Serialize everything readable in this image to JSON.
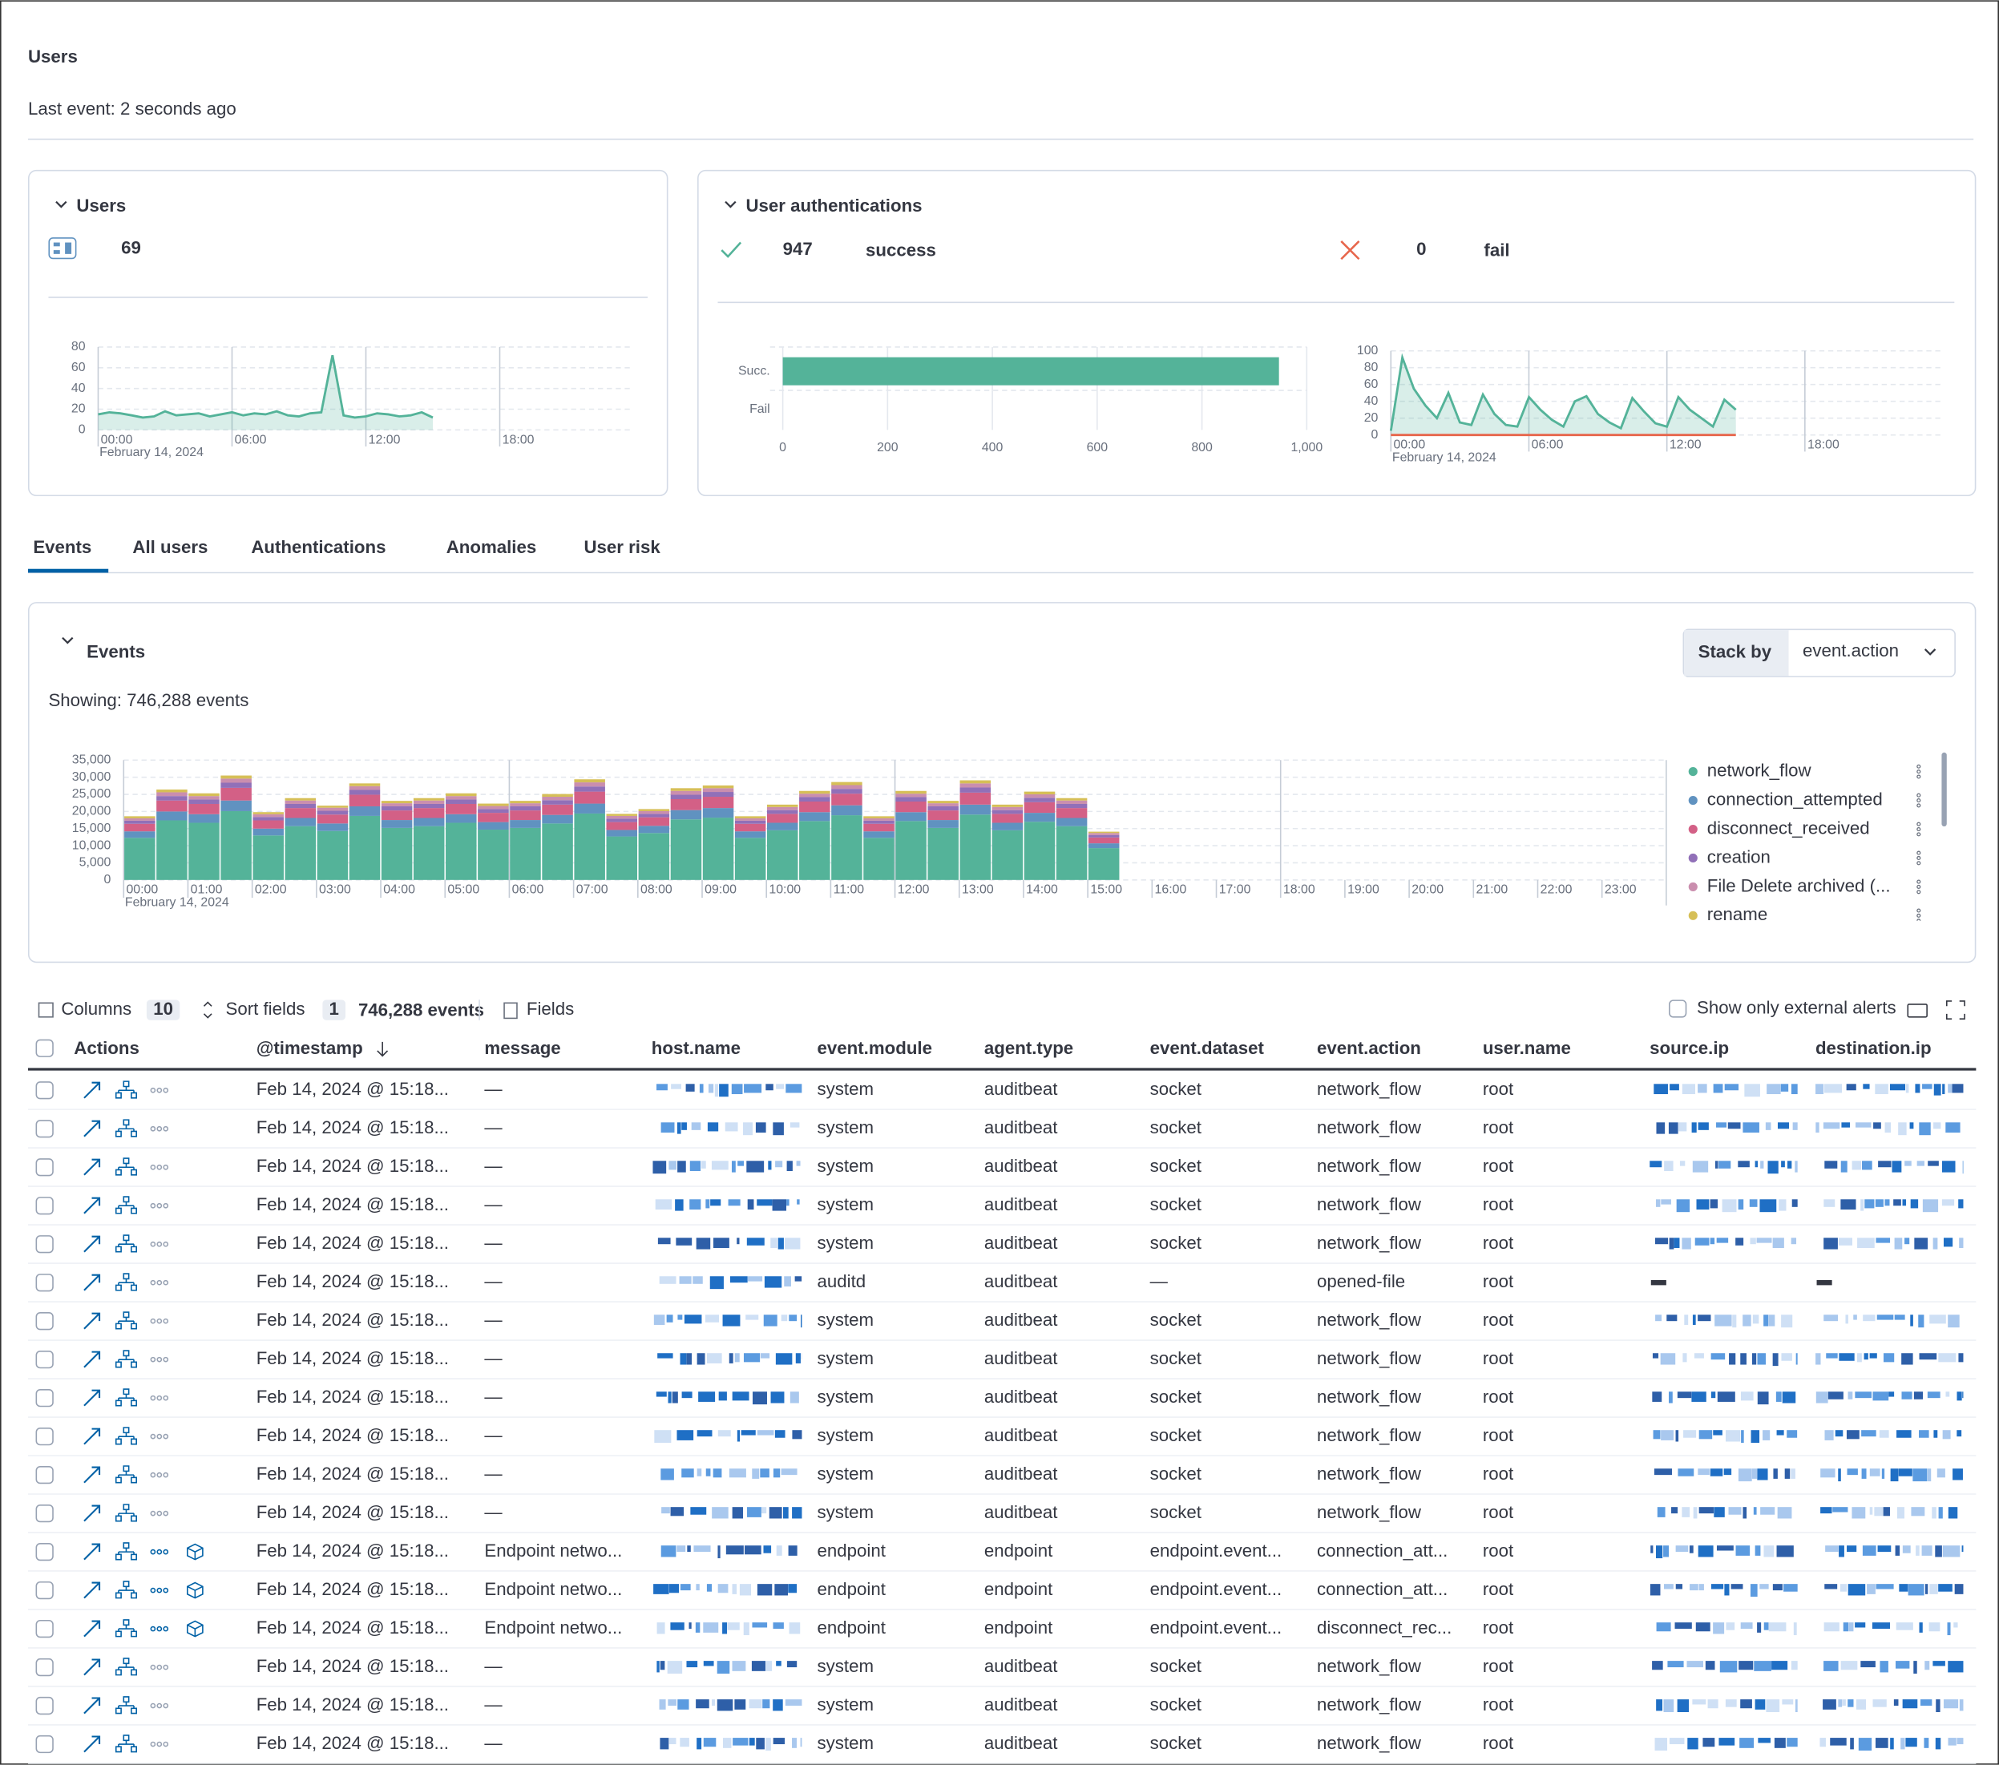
{
  "header": {
    "title": "Users",
    "subtitle": "Last event: 2 seconds ago"
  },
  "users_panel": {
    "title": "Users",
    "count": 69,
    "chart": {
      "type": "area",
      "color": "#54b399",
      "x": [
        0,
        0.5,
        1,
        1.5,
        2,
        2.5,
        3,
        3.5,
        4,
        4.5,
        5,
        5.5,
        6,
        6.5,
        7,
        7.5,
        8,
        8.5,
        9,
        9.5,
        10,
        10.5,
        11,
        11.5,
        12,
        12.5,
        13,
        13.5,
        14,
        14.5,
        15
      ],
      "values": [
        15,
        17,
        16,
        14,
        12,
        13,
        18,
        14,
        15,
        16,
        13,
        15,
        17,
        14,
        16,
        15,
        18,
        14,
        13,
        16,
        17,
        72,
        14,
        12,
        13,
        16,
        15,
        13,
        14,
        17,
        12
      ],
      "xlim": [
        0,
        24
      ],
      "ylim": [
        0,
        80
      ],
      "yticks": [
        0,
        20,
        40,
        60,
        80
      ],
      "xticks": [
        {
          "value": 0,
          "label": "00:00"
        },
        {
          "value": 6,
          "label": "06:00"
        },
        {
          "value": 12,
          "label": "12:00"
        },
        {
          "value": 18,
          "label": "18:00"
        }
      ],
      "x_date": "February 14, 2024"
    }
  },
  "auth_panel": {
    "title": "User authentications",
    "success_count": 947,
    "success_label": "success",
    "fail_count": 0,
    "fail_label": "fail",
    "bar_chart": {
      "type": "bar",
      "orientation": "horizontal",
      "categories": [
        "Succ.",
        "Fail"
      ],
      "values": [
        947,
        0
      ],
      "color": "#54b399",
      "xlim": [
        0,
        1000
      ],
      "xticks": [
        0,
        200,
        400,
        600,
        800,
        {
          "value": 1000,
          "label": "1,000"
        }
      ]
    },
    "line_chart": {
      "type": "area",
      "x": [
        0,
        0.5,
        1,
        1.5,
        2,
        2.5,
        3,
        3.5,
        4,
        4.5,
        5,
        5.5,
        6,
        6.5,
        7,
        7.5,
        8,
        8.5,
        9,
        9.5,
        10,
        10.5,
        11,
        11.5,
        12,
        12.5,
        13,
        13.5,
        14,
        14.5,
        15
      ],
      "series": [
        {
          "color": "#54b399",
          "values": [
            5,
            92,
            55,
            35,
            20,
            50,
            15,
            12,
            48,
            25,
            12,
            10,
            45,
            30,
            18,
            10,
            40,
            46,
            25,
            15,
            8,
            44,
            28,
            14,
            10,
            45,
            30,
            20,
            10,
            42,
            30
          ]
        },
        {
          "color": "#e7664c",
          "values": [
            0,
            0,
            0,
            0,
            0,
            0,
            0,
            0,
            0,
            0,
            0,
            0,
            0,
            0,
            0,
            0,
            0,
            0,
            0,
            0,
            0,
            0,
            0,
            0,
            0,
            0,
            0,
            0,
            0,
            0,
            0
          ]
        }
      ],
      "xlim": [
        0,
        24
      ],
      "ylim": [
        0,
        100
      ],
      "yticks": [
        0,
        20,
        40,
        60,
        80,
        100
      ],
      "xticks": [
        {
          "value": 0,
          "label": "00:00"
        },
        {
          "value": 6,
          "label": "06:00"
        },
        {
          "value": 12,
          "label": "12:00"
        },
        {
          "value": 18,
          "label": "18:00"
        }
      ],
      "x_date": "February 14, 2024"
    }
  },
  "tabs": [
    "Events",
    "All users",
    "Authentications",
    "Anomalies",
    "User risk"
  ],
  "events_panel": {
    "title": "Events",
    "subtitle": "Showing: 746,288 events",
    "stack_by_label": "Stack by",
    "stack_by_value": "event.action",
    "chart": {
      "type": "stacked_bar",
      "x": [
        0,
        0.5,
        1,
        1.5,
        2,
        2.5,
        3,
        3.5,
        4,
        4.5,
        5,
        5.5,
        6,
        6.5,
        7,
        7.5,
        8,
        8.5,
        9,
        9.5,
        10,
        10.5,
        11,
        11.5,
        12,
        12.5,
        13,
        13.5,
        14,
        14.5,
        15
      ],
      "xlim": [
        0,
        24
      ],
      "ylim": [
        0,
        35000
      ],
      "yticks": [
        0,
        {
          "value": 5000,
          "label": "5,000"
        },
        {
          "value": 10000,
          "label": "10,000"
        },
        {
          "value": 15000,
          "label": "15,000"
        },
        {
          "value": 20000,
          "label": "20,000"
        },
        {
          "value": 25000,
          "label": "25,000"
        },
        {
          "value": 30000,
          "label": "30,000"
        },
        {
          "value": 35000,
          "label": "35,000"
        }
      ],
      "xticks": [
        {
          "value": 0,
          "label": "00:00"
        },
        {
          "value": 1,
          "label": "01:00"
        },
        {
          "value": 2,
          "label": "02:00"
        },
        {
          "value": 3,
          "label": "03:00"
        },
        {
          "value": 4,
          "label": "04:00"
        },
        {
          "value": 5,
          "label": "05:00"
        },
        {
          "value": 6,
          "label": "06:00"
        },
        {
          "value": 7,
          "label": "07:00"
        },
        {
          "value": 8,
          "label": "08:00"
        },
        {
          "value": 9,
          "label": "09:00"
        },
        {
          "value": 10,
          "label": "10:00"
        },
        {
          "value": 11,
          "label": "11:00"
        },
        {
          "value": 12,
          "label": "12:00"
        },
        {
          "value": 13,
          "label": "13:00"
        },
        {
          "value": 14,
          "label": "14:00"
        },
        {
          "value": 15,
          "label": "15:00"
        },
        {
          "value": 16,
          "label": "16:00"
        },
        {
          "value": 17,
          "label": "17:00"
        },
        {
          "value": 18,
          "label": "18:00"
        },
        {
          "value": 19,
          "label": "19:00"
        },
        {
          "value": 20,
          "label": "20:00"
        },
        {
          "value": 21,
          "label": "21:00"
        },
        {
          "value": 22,
          "label": "22:00"
        },
        {
          "value": 23,
          "label": "23:00"
        }
      ],
      "x_date": "February 14, 2024",
      "series": [
        {
          "name": "network_flow",
          "color": "#54b399",
          "values": [
            12300,
            17400,
            16700,
            20100,
            13000,
            15700,
            14300,
            18700,
            15200,
            15700,
            16700,
            14700,
            15200,
            16500,
            19400,
            12700,
            13700,
            17700,
            18200,
            12300,
            14500,
            17200,
            18900,
            12300,
            17200,
            15200,
            19100,
            14500,
            17000,
            15700,
            9300
          ]
        },
        {
          "name": "connection_attempted",
          "color": "#6092c0",
          "values": [
            1900,
            2600,
            2500,
            3100,
            2000,
            2400,
            2200,
            2800,
            2300,
            2400,
            2500,
            2200,
            2300,
            2500,
            2900,
            1900,
            2100,
            2700,
            2800,
            1900,
            2200,
            2600,
            2900,
            1900,
            2600,
            2300,
            2900,
            2200,
            2600,
            2400,
            1400
          ]
        },
        {
          "name": "disconnect_received",
          "color": "#d36086",
          "values": [
            2200,
            3200,
            3000,
            3700,
            2400,
            2900,
            2600,
            3400,
            2800,
            2900,
            3000,
            2700,
            2800,
            3000,
            3500,
            2300,
            2500,
            3200,
            3300,
            2200,
            2600,
            3100,
            3400,
            2200,
            3100,
            2800,
            3500,
            2600,
            3100,
            2900,
            1700
          ]
        },
        {
          "name": "creation",
          "color": "#9170b8",
          "values": [
            900,
            1300,
            1300,
            1500,
            1000,
            1200,
            1100,
            1400,
            1200,
            1200,
            1300,
            1100,
            1200,
            1300,
            1500,
            1000,
            1000,
            1300,
            1400,
            900,
            1100,
            1300,
            1400,
            900,
            1300,
            1200,
            1500,
            1100,
            1300,
            1200,
            700
          ]
        },
        {
          "name": "File Delete archived (...",
          "color": "#ca8eae",
          "values": [
            700,
            1100,
            1000,
            1200,
            800,
            1000,
            900,
            1100,
            900,
            1000,
            1000,
            900,
            900,
            1000,
            1200,
            800,
            800,
            1100,
            1100,
            700,
            900,
            1000,
            1100,
            700,
            1000,
            900,
            1200,
            900,
            1000,
            1000,
            600
          ]
        },
        {
          "name": "rename",
          "color": "#d6bf57",
          "values": [
            600,
            800,
            800,
            900,
            600,
            700,
            600,
            800,
            700,
            700,
            800,
            700,
            700,
            800,
            900,
            600,
            600,
            800,
            800,
            600,
            700,
            800,
            900,
            600,
            800,
            700,
            900,
            700,
            800,
            700,
            400
          ]
        }
      ]
    }
  },
  "table": {
    "toolbar": {
      "columns_label": "Columns",
      "columns_count": 10,
      "sort_label": "Sort fields",
      "sort_count": 1,
      "event_count": "746,288 events",
      "fields_label": "Fields",
      "external_alerts_label": "Show only external alerts"
    },
    "headers": [
      "Actions",
      "@timestamp",
      "message",
      "host.name",
      "event.module",
      "agent.type",
      "event.dataset",
      "event.action",
      "user.name",
      "source.ip",
      "destination.ip"
    ],
    "rows": [
      [
        "Feb 14, 2024 @ 15:18...",
        "—",
        "system",
        "auditbeat",
        "socket",
        "network_flow",
        "root"
      ],
      [
        "Feb 14, 2024 @ 15:18...",
        "—",
        "system",
        "auditbeat",
        "socket",
        "network_flow",
        "root"
      ],
      [
        "Feb 14, 2024 @ 15:18...",
        "—",
        "system",
        "auditbeat",
        "socket",
        "network_flow",
        "root"
      ],
      [
        "Feb 14, 2024 @ 15:18...",
        "—",
        "system",
        "auditbeat",
        "socket",
        "network_flow",
        "root"
      ],
      [
        "Feb 14, 2024 @ 15:18...",
        "—",
        "system",
        "auditbeat",
        "socket",
        "network_flow",
        "root"
      ],
      [
        "Feb 14, 2024 @ 15:18...",
        "—",
        "auditd",
        "auditbeat",
        "—",
        "opened-file",
        "root"
      ],
      [
        "Feb 14, 2024 @ 15:18...",
        "—",
        "system",
        "auditbeat",
        "socket",
        "network_flow",
        "root"
      ],
      [
        "Feb 14, 2024 @ 15:18...",
        "—",
        "system",
        "auditbeat",
        "socket",
        "network_flow",
        "root"
      ],
      [
        "Feb 14, 2024 @ 15:18...",
        "—",
        "system",
        "auditbeat",
        "socket",
        "network_flow",
        "root"
      ],
      [
        "Feb 14, 2024 @ 15:18...",
        "—",
        "system",
        "auditbeat",
        "socket",
        "network_flow",
        "root"
      ],
      [
        "Feb 14, 2024 @ 15:18...",
        "—",
        "system",
        "auditbeat",
        "socket",
        "network_flow",
        "root"
      ],
      [
        "Feb 14, 2024 @ 15:18...",
        "—",
        "system",
        "auditbeat",
        "socket",
        "network_flow",
        "root"
      ],
      [
        "Feb 14, 2024 @ 15:18...",
        "Endpoint netwo...",
        "endpoint",
        "endpoint",
        "endpoint.event...",
        "connection_att...",
        "root"
      ],
      [
        "Feb 14, 2024 @ 15:18...",
        "Endpoint netwo...",
        "endpoint",
        "endpoint",
        "endpoint.event...",
        "connection_att...",
        "root"
      ],
      [
        "Feb 14, 2024 @ 15:18...",
        "Endpoint netwo...",
        "endpoint",
        "endpoint",
        "endpoint.event...",
        "disconnect_rec...",
        "root"
      ],
      [
        "Feb 14, 2024 @ 15:18...",
        "—",
        "system",
        "auditbeat",
        "socket",
        "network_flow",
        "root"
      ],
      [
        "Feb 14, 2024 @ 15:18...",
        "—",
        "system",
        "auditbeat",
        "socket",
        "network_flow",
        "root"
      ],
      [
        "Feb 14, 2024 @ 15:18...",
        "—",
        "system",
        "auditbeat",
        "socket",
        "network_flow",
        "root"
      ]
    ]
  }
}
